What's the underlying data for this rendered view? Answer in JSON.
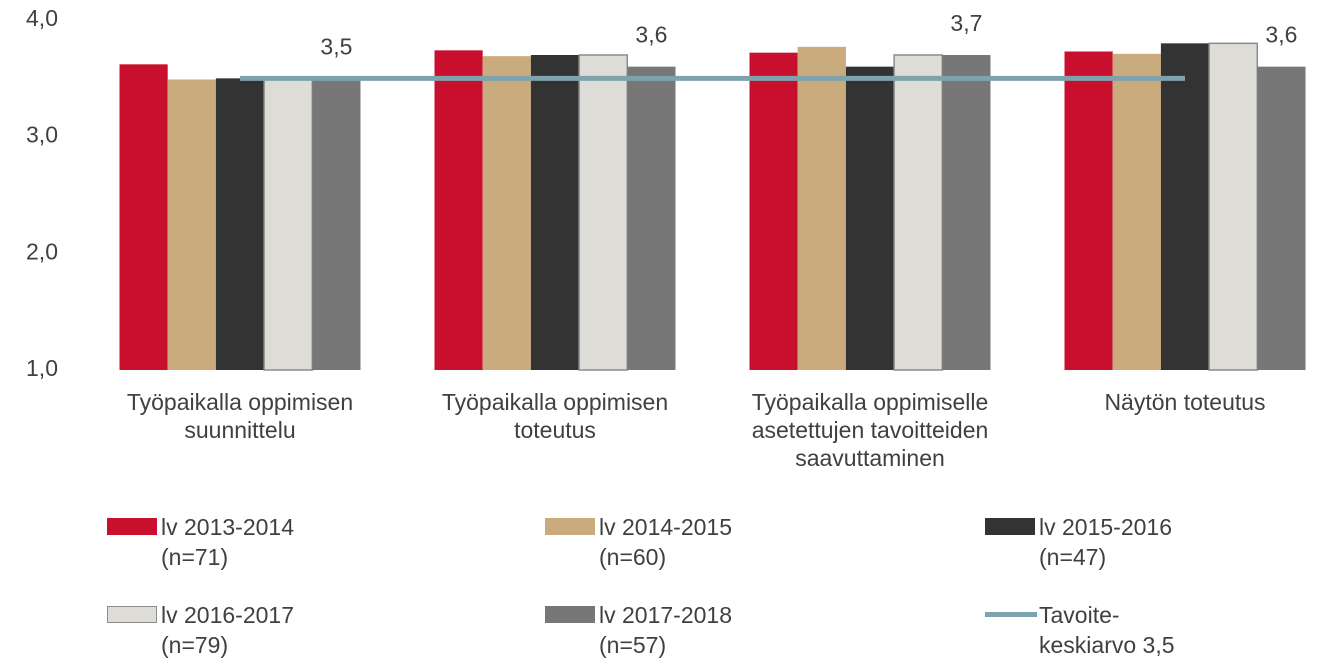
{
  "chart_data": {
    "type": "bar",
    "categories": [
      "Työpaikalla oppimisen\nsuunnittelu",
      "Työpaikalla oppimisen\ntoteutus",
      "Työpaikalla oppimiselle\nasetettujen tavoitteiden\nsaavuttaminen",
      "Näytön toteutus"
    ],
    "series": [
      {
        "name": "lv 2013-2014\n(n=71)",
        "color": "#c8102e",
        "values": [
          3.62,
          3.74,
          3.72,
          3.73
        ]
      },
      {
        "name": "lv 2014-2015\n(n=60)",
        "color": "#c9ab7d",
        "values": [
          3.49,
          3.69,
          3.77,
          3.71
        ]
      },
      {
        "name": "lv 2015-2016\n(n=47)",
        "color": "#333333",
        "values": [
          3.5,
          3.7,
          3.6,
          3.8
        ]
      },
      {
        "name": "lv 2016-2017\n(n=79)",
        "color": "#dedcd7",
        "values": [
          3.5,
          3.7,
          3.7,
          3.8
        ]
      },
      {
        "name": "lv 2017-2018\n(n=57)",
        "color": "#777777",
        "values": [
          3.5,
          3.6,
          3.7,
          3.6
        ],
        "value_labels": [
          "3,5",
          "3,6",
          "3,7",
          "3,6"
        ]
      },
      {
        "name": "Tavoite-\nkeskiarvo 3,5",
        "color": "#7fa3ad",
        "type": "line",
        "values": [
          3.5,
          3.5,
          3.5,
          3.5
        ]
      }
    ],
    "ylim": [
      1,
      4
    ],
    "yticks": [
      {
        "value": 1,
        "label": "1,0"
      },
      {
        "value": 2,
        "label": "2,0"
      },
      {
        "value": 3,
        "label": "3,0"
      },
      {
        "value": 4,
        "label": "4,0"
      }
    ],
    "grid": false
  }
}
